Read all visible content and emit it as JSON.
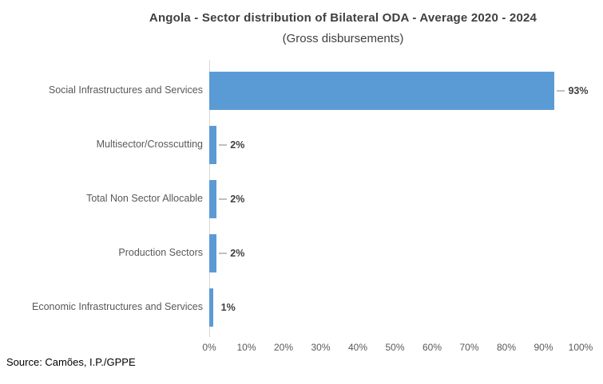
{
  "chart_data": {
    "type": "bar",
    "orientation": "horizontal",
    "title": "Angola - Sector distribution of Bilateral ODA - Average 2020 - 2024",
    "subtitle": "(Gross disbursements)",
    "categories": [
      "Social Infrastructures and Services",
      "Multisector/Crosscutting",
      "Total Non Sector Allocable",
      "Production Sectors",
      "Economic Infrastructures and Services"
    ],
    "values": [
      93,
      2,
      2,
      2,
      1
    ],
    "value_labels": [
      "93%",
      "2%",
      "2%",
      "2%",
      "1%"
    ],
    "x_ticks": [
      "0%",
      "10%",
      "20%",
      "30%",
      "40%",
      "50%",
      "60%",
      "70%",
      "80%",
      "90%",
      "100%"
    ],
    "xlim": [
      0,
      100
    ],
    "grid": false,
    "legend": false,
    "colors": {
      "bar": "#5B9BD5",
      "axis_line": "#D9D9D9",
      "category_label": "#595959",
      "tick_label": "#595959",
      "title": "#3F3F3F",
      "value_label": "#404040",
      "leader_line": "#BFBFBF"
    }
  },
  "source": "Source: Camões, I.P./GPPE"
}
